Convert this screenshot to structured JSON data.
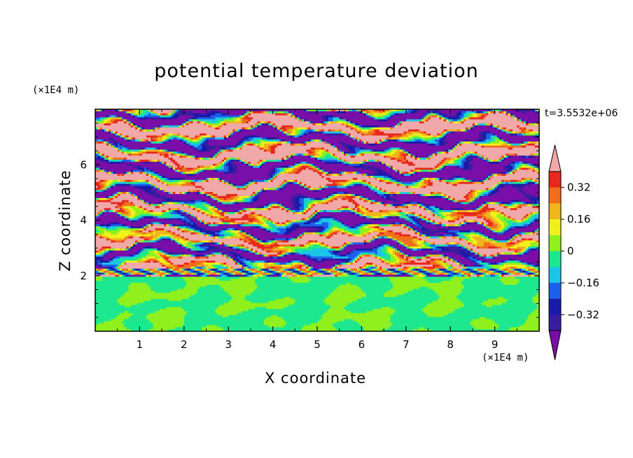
{
  "chart_data": {
    "type": "heatmap",
    "title": "potential temperature deviation",
    "xlabel": "X coordinate",
    "ylabel": "Z coordinate",
    "x_unit": "(×1E4 m)",
    "y_unit": "(×1E4 m)",
    "time_label": "t=3.5532e+06",
    "xlim": [
      0,
      10
    ],
    "ylim": [
      0,
      8
    ],
    "x_ticks": [
      "1",
      "2",
      "3",
      "4",
      "5",
      "6",
      "7",
      "8",
      "9"
    ],
    "y_ticks": [
      "2",
      "4",
      "6"
    ],
    "colorbar": {
      "levels": [
        -0.48,
        -0.4,
        -0.32,
        -0.24,
        -0.16,
        -0.08,
        0,
        0.08,
        0.16,
        0.24,
        0.32,
        0.4,
        0.48
      ],
      "labels": [
        "0.32",
        "0.16",
        "0",
        "−0.16",
        "−0.32"
      ],
      "colors": [
        "#7a0fa8",
        "#3a1ca0",
        "#1a1aa8",
        "#1c5fe8",
        "#1cc4e8",
        "#1ee88f",
        "#8ef01c",
        "#f0f01c",
        "#f0b41c",
        "#f06e1c",
        "#e8281c",
        "#f0a8a8"
      ],
      "extend": "both"
    },
    "regions": [
      {
        "z_range": [
          0,
          2
        ],
        "description_values": [
          -0.04,
          0.04
        ],
        "pattern": "smooth"
      },
      {
        "z_range": [
          2,
          8
        ],
        "description_values": [
          -0.48,
          0.48
        ],
        "pattern": "layered-banded"
      }
    ]
  }
}
